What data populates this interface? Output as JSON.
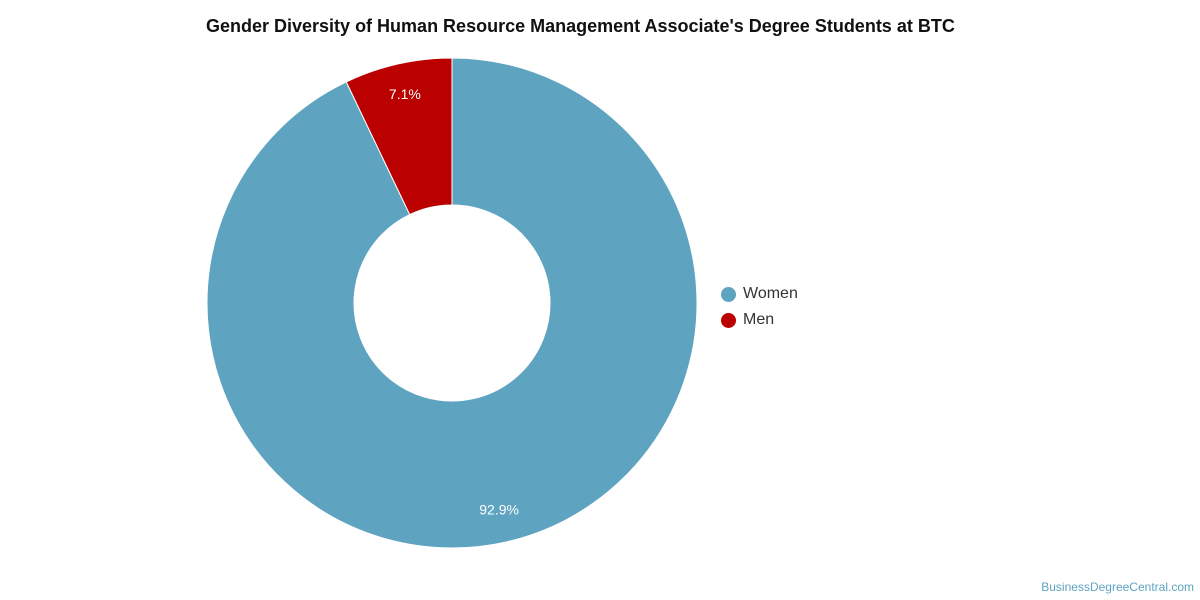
{
  "chart_data": {
    "type": "pie",
    "subtype": "donut",
    "title": "Gender Diversity of Human Resource Management Associate's Degree Students at BTC",
    "categories": [
      "Women",
      "Men"
    ],
    "values": [
      92.9,
      7.1
    ],
    "labels": [
      "92.9%",
      "7.1%"
    ],
    "colors": [
      "#5ea3c0",
      "#bb0000"
    ],
    "legend_position": "right"
  },
  "legend": {
    "items": [
      {
        "label": "Women",
        "color": "#5ea3c0"
      },
      {
        "label": "Men",
        "color": "#bb0000"
      }
    ]
  },
  "watermark": "BusinessDegreeCentral.com"
}
